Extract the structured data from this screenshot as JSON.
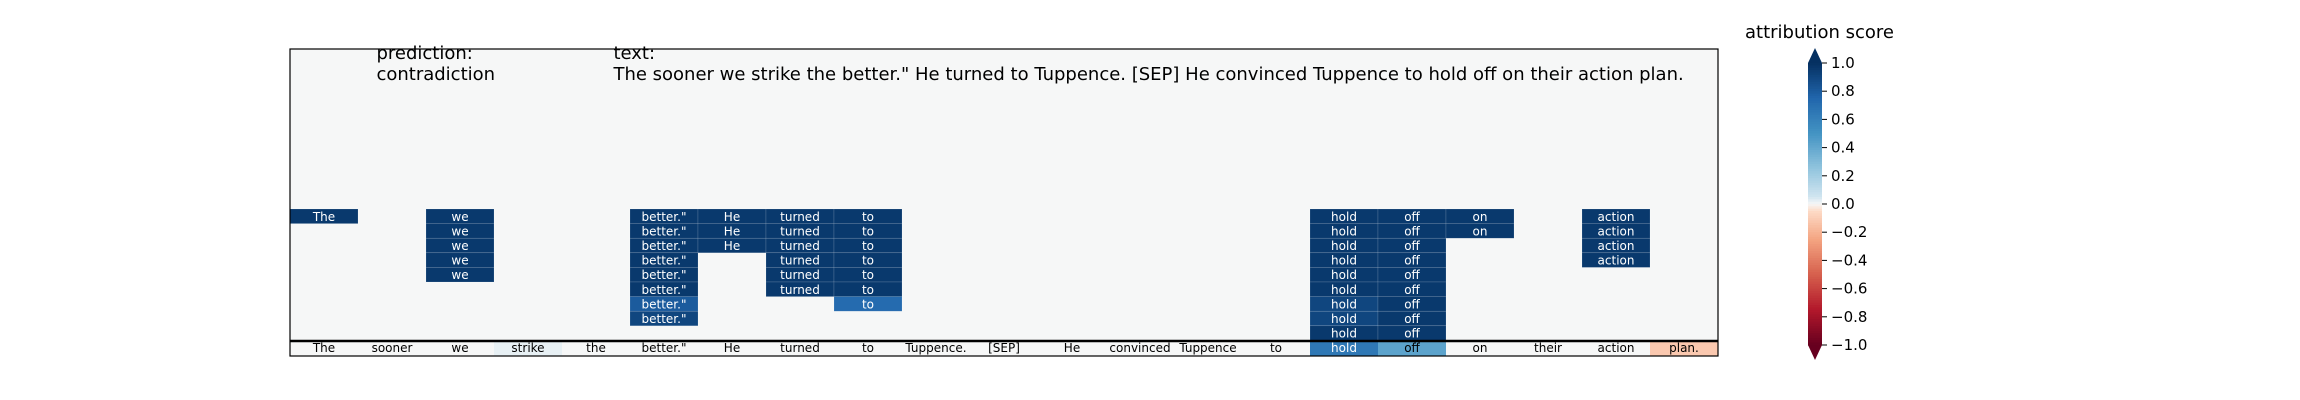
{
  "header": {
    "prediction_label": "prediction:",
    "prediction_value": "contradiction",
    "text_label": "text:",
    "text_value": "The sooner we strike the better.\" He turned to Tuppence. [SEP] He convinced Tuppence to hold off on their action plan."
  },
  "colorbar": {
    "title": "attribution score",
    "ticks": [
      "1.0",
      "0.8",
      "0.6",
      "0.4",
      "0.2",
      "0.0",
      "−0.2",
      "−0.4",
      "−0.6",
      "−0.8",
      "−1.0"
    ],
    "tick_values": [
      1.0,
      0.8,
      0.6,
      0.4,
      0.2,
      0.0,
      -0.2,
      -0.4,
      -0.6,
      -0.8,
      -1.0
    ],
    "range": [
      -1.0,
      1.0
    ],
    "colormap": "RdBu",
    "extend": "both"
  },
  "chart_data": {
    "type": "heatmap",
    "title": "prediction:  contradiction     text:  The sooner we strike the better.\" He turned to Tuppence. [SEP] He convinced Tuppence to hold off on their action plan.",
    "tokens": [
      "The",
      "sooner",
      "we",
      "strike",
      "the",
      "better.\"",
      "He",
      "turned",
      "to",
      "Tuppence.",
      "[SEP]",
      "He",
      "convinced",
      "Tuppence",
      "to",
      "hold",
      "off",
      "on",
      "their",
      "action",
      "plan."
    ],
    "token_scores": [
      0.0,
      0.0,
      0.0,
      0.02,
      0.0,
      0.0,
      0.0,
      0.0,
      0.0,
      0.0,
      0.0,
      0.0,
      0.0,
      0.0,
      0.0,
      0.65,
      0.42,
      0.0,
      0.0,
      0.0,
      -0.12
    ],
    "cells": [
      {
        "row": 0,
        "col": 0,
        "value": 0.96
      },
      {
        "row": 0,
        "col": 2,
        "value": 0.96
      },
      {
        "row": 0,
        "col": 5,
        "value": 0.96
      },
      {
        "row": 0,
        "col": 6,
        "value": 0.96
      },
      {
        "row": 0,
        "col": 7,
        "value": 0.96
      },
      {
        "row": 0,
        "col": 8,
        "value": 0.96
      },
      {
        "row": 0,
        "col": 15,
        "value": 0.96
      },
      {
        "row": 0,
        "col": 16,
        "value": 0.96
      },
      {
        "row": 0,
        "col": 17,
        "value": 0.96
      },
      {
        "row": 0,
        "col": 19,
        "value": 0.96
      },
      {
        "row": 1,
        "col": 2,
        "value": 0.96
      },
      {
        "row": 1,
        "col": 5,
        "value": 0.96
      },
      {
        "row": 1,
        "col": 6,
        "value": 0.96
      },
      {
        "row": 1,
        "col": 7,
        "value": 0.96
      },
      {
        "row": 1,
        "col": 8,
        "value": 0.96
      },
      {
        "row": 1,
        "col": 15,
        "value": 0.96
      },
      {
        "row": 1,
        "col": 16,
        "value": 0.96
      },
      {
        "row": 1,
        "col": 17,
        "value": 0.96
      },
      {
        "row": 1,
        "col": 19,
        "value": 0.96
      },
      {
        "row": 2,
        "col": 2,
        "value": 0.96
      },
      {
        "row": 2,
        "col": 5,
        "value": 0.96
      },
      {
        "row": 2,
        "col": 6,
        "value": 0.96
      },
      {
        "row": 2,
        "col": 7,
        "value": 0.96
      },
      {
        "row": 2,
        "col": 8,
        "value": 0.96
      },
      {
        "row": 2,
        "col": 15,
        "value": 0.96
      },
      {
        "row": 2,
        "col": 16,
        "value": 0.96
      },
      {
        "row": 2,
        "col": 19,
        "value": 0.96
      },
      {
        "row": 3,
        "col": 2,
        "value": 0.96
      },
      {
        "row": 3,
        "col": 5,
        "value": 0.96
      },
      {
        "row": 3,
        "col": 7,
        "value": 0.96
      },
      {
        "row": 3,
        "col": 8,
        "value": 0.96
      },
      {
        "row": 3,
        "col": 15,
        "value": 0.96
      },
      {
        "row": 3,
        "col": 16,
        "value": 0.96
      },
      {
        "row": 3,
        "col": 19,
        "value": 0.96
      },
      {
        "row": 4,
        "col": 2,
        "value": 0.96
      },
      {
        "row": 4,
        "col": 5,
        "value": 0.96
      },
      {
        "row": 4,
        "col": 7,
        "value": 0.96
      },
      {
        "row": 4,
        "col": 8,
        "value": 0.96
      },
      {
        "row": 4,
        "col": 15,
        "value": 0.96
      },
      {
        "row": 4,
        "col": 16,
        "value": 0.96
      },
      {
        "row": 5,
        "col": 5,
        "value": 0.96
      },
      {
        "row": 5,
        "col": 7,
        "value": 0.96
      },
      {
        "row": 5,
        "col": 8,
        "value": 0.96
      },
      {
        "row": 5,
        "col": 15,
        "value": 0.96
      },
      {
        "row": 5,
        "col": 16,
        "value": 0.96
      },
      {
        "row": 6,
        "col": 5,
        "value": 0.8
      },
      {
        "row": 6,
        "col": 8,
        "value": 0.72
      },
      {
        "row": 6,
        "col": 15,
        "value": 0.9
      },
      {
        "row": 6,
        "col": 16,
        "value": 0.96
      },
      {
        "row": 7,
        "col": 5,
        "value": 0.9
      },
      {
        "row": 7,
        "col": 15,
        "value": 0.9
      },
      {
        "row": 7,
        "col": 16,
        "value": 0.96
      },
      {
        "row": 8,
        "col": 15,
        "value": 0.96
      },
      {
        "row": 8,
        "col": 16,
        "value": 0.96
      }
    ],
    "background_value": 0.0
  }
}
